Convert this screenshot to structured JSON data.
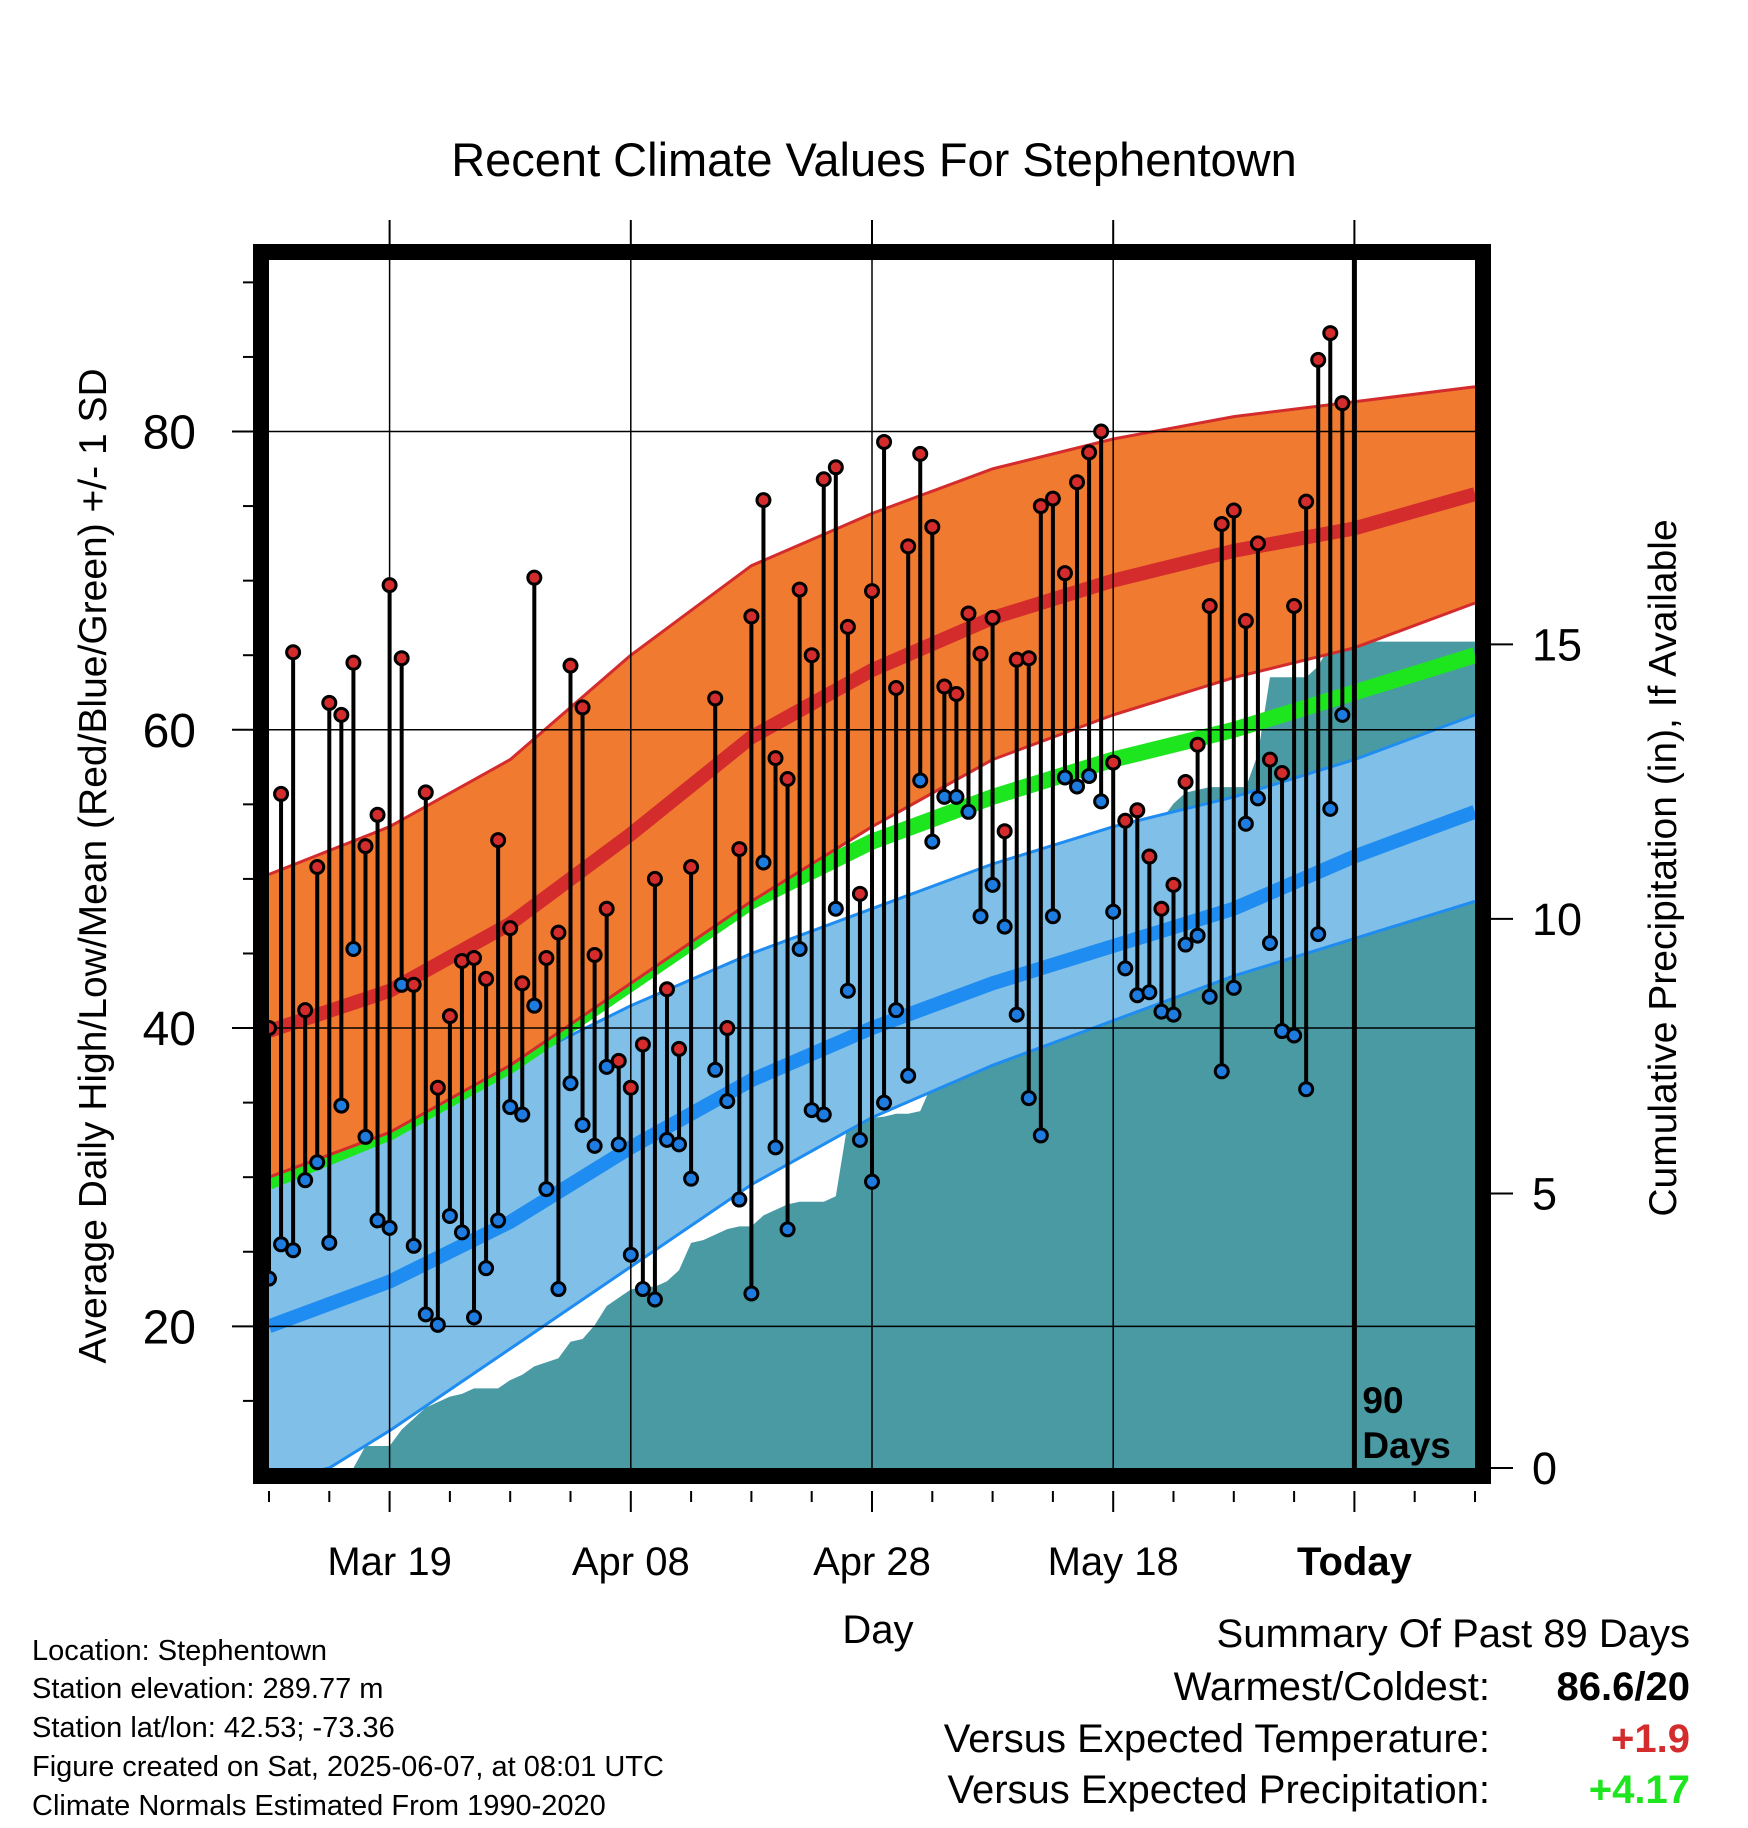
{
  "chart_data": {
    "type": "line",
    "title": "Recent Climate Values For Stephentown",
    "xlabel": "Day",
    "ylabel": "Average Daily High/Low/Mean (Red/Blue/Green) +/- 1 SD",
    "y2label": "Cumulative Precipitation (in), If Available",
    "ylim": [
      10.5,
      91.5
    ],
    "y2lim": [
      0,
      22
    ],
    "yticks": [
      "20",
      "40",
      "60",
      "80"
    ],
    "y2ticks": [
      "0",
      "5",
      "10",
      "15"
    ],
    "xticks": [
      {
        "day": 10,
        "label": "Mar 19"
      },
      {
        "day": 30,
        "label": "Apr 08"
      },
      {
        "day": 50,
        "label": "Apr 28"
      },
      {
        "day": 70,
        "label": "May 18"
      },
      {
        "day": 90,
        "label": "Today"
      }
    ],
    "today_label": [
      "90",
      "Days"
    ],
    "days": 100,
    "today_day": 90,
    "normals": {
      "high_mean": [
        [
          0,
          39.8
        ],
        [
          10,
          42.5
        ],
        [
          20,
          47
        ],
        [
          30,
          53
        ],
        [
          40,
          59.5
        ],
        [
          50,
          64
        ],
        [
          60,
          67.5
        ],
        [
          70,
          70
        ],
        [
          80,
          72
        ],
        [
          90,
          73.5
        ],
        [
          100,
          75.8
        ]
      ],
      "high_upper": [
        [
          0,
          50.3
        ],
        [
          10,
          53.5
        ],
        [
          20,
          58
        ],
        [
          30,
          65
        ],
        [
          40,
          71
        ],
        [
          50,
          74.5
        ],
        [
          60,
          77.5
        ],
        [
          70,
          79.5
        ],
        [
          80,
          81
        ],
        [
          90,
          82
        ],
        [
          100,
          83
        ]
      ],
      "high_lower": [
        [
          0,
          30
        ],
        [
          10,
          33
        ],
        [
          20,
          37.5
        ],
        [
          30,
          43
        ],
        [
          40,
          48.5
        ],
        [
          50,
          53.5
        ],
        [
          60,
          58
        ],
        [
          70,
          61
        ],
        [
          80,
          63.5
        ],
        [
          90,
          65.5
        ],
        [
          100,
          68.5
        ]
      ],
      "mean": [
        [
          0,
          29.7
        ],
        [
          10,
          33
        ],
        [
          20,
          37.5
        ],
        [
          30,
          43
        ],
        [
          40,
          48.5
        ],
        [
          50,
          52.5
        ],
        [
          60,
          55.5
        ],
        [
          70,
          58
        ],
        [
          80,
          60
        ],
        [
          90,
          62.5
        ],
        [
          100,
          65
        ]
      ],
      "low_mean": [
        [
          0,
          20
        ],
        [
          10,
          23
        ],
        [
          20,
          27
        ],
        [
          30,
          32
        ],
        [
          40,
          36.5
        ],
        [
          50,
          40
        ],
        [
          60,
          43
        ],
        [
          70,
          45.5
        ],
        [
          80,
          48
        ],
        [
          90,
          51.5
        ],
        [
          100,
          54.5
        ]
      ],
      "low_upper": [
        [
          0,
          30.5
        ],
        [
          10,
          33.5
        ],
        [
          20,
          37.5
        ],
        [
          30,
          41.5
        ],
        [
          40,
          45
        ],
        [
          50,
          48
        ],
        [
          60,
          51
        ],
        [
          70,
          53.5
        ],
        [
          80,
          55.5
        ],
        [
          90,
          58
        ],
        [
          100,
          61
        ]
      ],
      "low_lower": [
        [
          0,
          9.5
        ],
        [
          5,
          10.5
        ],
        [
          10,
          13
        ],
        [
          20,
          18.5
        ],
        [
          30,
          24
        ],
        [
          40,
          29.5
        ],
        [
          50,
          34
        ],
        [
          60,
          37.5
        ],
        [
          70,
          40.5
        ],
        [
          80,
          43.5
        ],
        [
          90,
          46
        ],
        [
          100,
          48.5
        ]
      ]
    },
    "daily": [
      {
        "day": 0,
        "high": 40.0,
        "low": 23.2
      },
      {
        "day": 1,
        "high": 55.7,
        "low": 25.5
      },
      {
        "day": 2,
        "high": 65.2,
        "low": 25.1
      },
      {
        "day": 3,
        "high": 41.2,
        "low": 29.8
      },
      {
        "day": 4,
        "high": 50.8,
        "low": 31.0
      },
      {
        "day": 5,
        "high": 61.8,
        "low": 25.6
      },
      {
        "day": 6,
        "high": 61.0,
        "low": 34.8
      },
      {
        "day": 7,
        "high": 64.5,
        "low": 45.3
      },
      {
        "day": 8,
        "high": 52.2,
        "low": 32.7
      },
      {
        "day": 9,
        "high": 54.3,
        "low": 27.1
      },
      {
        "day": 10,
        "high": 69.7,
        "low": 26.6
      },
      {
        "day": 11,
        "high": 64.8,
        "low": 42.9
      },
      {
        "day": 12,
        "high": 42.9,
        "low": 25.4
      },
      {
        "day": 13,
        "high": 55.8,
        "low": 20.8
      },
      {
        "day": 14,
        "high": 36.0,
        "low": 20.1
      },
      {
        "day": 15,
        "high": 40.8,
        "low": 27.4
      },
      {
        "day": 16,
        "high": 44.5,
        "low": 26.3
      },
      {
        "day": 17,
        "high": 44.7,
        "low": 20.6
      },
      {
        "day": 18,
        "high": 43.3,
        "low": 23.9
      },
      {
        "day": 19,
        "high": 52.6,
        "low": 27.1
      },
      {
        "day": 20,
        "high": 46.7,
        "low": 34.7
      },
      {
        "day": 21,
        "high": 43.0,
        "low": 34.2
      },
      {
        "day": 22,
        "high": 70.2,
        "low": 41.5
      },
      {
        "day": 23,
        "high": 44.7,
        "low": 29.2
      },
      {
        "day": 24,
        "high": 46.4,
        "low": 22.5
      },
      {
        "day": 25,
        "high": 64.3,
        "low": 36.3
      },
      {
        "day": 26,
        "high": 61.5,
        "low": 33.5
      },
      {
        "day": 27,
        "high": 44.9,
        "low": 32.1
      },
      {
        "day": 28,
        "high": 48.0,
        "low": 37.4
      },
      {
        "day": 29,
        "high": 37.8,
        "low": 32.2
      },
      {
        "day": 30,
        "high": 36.0,
        "low": 24.8
      },
      {
        "day": 31,
        "high": 38.9,
        "low": 22.5
      },
      {
        "day": 32,
        "high": 50.0,
        "low": 21.8
      },
      {
        "day": 33,
        "high": 42.6,
        "low": 32.5
      },
      {
        "day": 34,
        "high": 38.6,
        "low": 32.2
      },
      {
        "day": 35,
        "high": 50.8,
        "low": 29.9
      },
      {
        "day": 37,
        "high": 62.1,
        "low": 37.2
      },
      {
        "day": 38,
        "high": 40.0,
        "low": 35.1
      },
      {
        "day": 39,
        "high": 52.0,
        "low": 28.5
      },
      {
        "day": 40,
        "high": 67.6,
        "low": 22.2
      },
      {
        "day": 41,
        "high": 75.4,
        "low": 51.1
      },
      {
        "day": 42,
        "high": 58.1,
        "low": 32.0
      },
      {
        "day": 43,
        "high": 56.7,
        "low": 26.5
      },
      {
        "day": 44,
        "high": 69.4,
        "low": 45.3
      },
      {
        "day": 45,
        "high": 65.0,
        "low": 34.5
      },
      {
        "day": 46,
        "high": 76.8,
        "low": 34.2
      },
      {
        "day": 47,
        "high": 77.6,
        "low": 48.0
      },
      {
        "day": 48,
        "high": 66.9,
        "low": 42.5
      },
      {
        "day": 49,
        "high": 49.0,
        "low": 32.5
      },
      {
        "day": 50,
        "high": 69.3,
        "low": 29.7
      },
      {
        "day": 51,
        "high": 79.3,
        "low": 35.0
      },
      {
        "day": 52,
        "high": 62.8,
        "low": 41.2
      },
      {
        "day": 53,
        "high": 72.3,
        "low": 36.8
      },
      {
        "day": 54,
        "high": 78.5,
        "low": 56.6
      },
      {
        "day": 55,
        "high": 73.6,
        "low": 52.5
      },
      {
        "day": 56,
        "high": 62.9,
        "low": 55.5
      },
      {
        "day": 57,
        "high": 62.4,
        "low": 55.5
      },
      {
        "day": 58,
        "high": 67.8,
        "low": 54.5
      },
      {
        "day": 59,
        "high": 65.1,
        "low": 47.5
      },
      {
        "day": 60,
        "high": 67.5,
        "low": 49.6
      },
      {
        "day": 61,
        "high": 53.2,
        "low": 46.8
      },
      {
        "day": 62,
        "high": 64.7,
        "low": 40.9
      },
      {
        "day": 63,
        "high": 64.8,
        "low": 35.3
      },
      {
        "day": 64,
        "high": 75.0,
        "low": 32.8
      },
      {
        "day": 65,
        "high": 75.5,
        "low": 47.5
      },
      {
        "day": 66,
        "high": 70.5,
        "low": 56.8
      },
      {
        "day": 67,
        "high": 76.6,
        "low": 56.2
      },
      {
        "day": 68,
        "high": 78.6,
        "low": 56.9
      },
      {
        "day": 69,
        "high": 80.0,
        "low": 55.2
      },
      {
        "day": 70,
        "high": 57.8,
        "low": 47.8
      },
      {
        "day": 71,
        "high": 53.9,
        "low": 44.0
      },
      {
        "day": 72,
        "high": 54.6,
        "low": 42.2
      },
      {
        "day": 73,
        "high": 51.5,
        "low": 42.4
      },
      {
        "day": 74,
        "high": 48.0,
        "low": 41.1
      },
      {
        "day": 75,
        "high": 49.6,
        "low": 40.9
      },
      {
        "day": 76,
        "high": 56.5,
        "low": 45.6
      },
      {
        "day": 77,
        "high": 59.0,
        "low": 46.2
      },
      {
        "day": 78,
        "high": 68.3,
        "low": 42.1
      },
      {
        "day": 79,
        "high": 73.8,
        "low": 37.1
      },
      {
        "day": 80,
        "high": 74.7,
        "low": 42.7
      },
      {
        "day": 81,
        "high": 67.3,
        "low": 53.7
      },
      {
        "day": 82,
        "high": 72.5,
        "low": 55.4
      },
      {
        "day": 83,
        "high": 58.0,
        "low": 45.7
      },
      {
        "day": 84,
        "high": 57.1,
        "low": 39.8
      },
      {
        "day": 85,
        "high": 68.3,
        "low": 39.5
      },
      {
        "day": 86,
        "high": 75.3,
        "low": 35.9
      },
      {
        "day": 87,
        "high": 84.8,
        "low": 46.3
      },
      {
        "day": 88,
        "high": 86.6,
        "low": 54.7
      },
      {
        "day": 89,
        "high": 81.9,
        "low": 61.0
      }
    ],
    "precip": [
      [
        0,
        0
      ],
      [
        7,
        0
      ],
      [
        8,
        0.4
      ],
      [
        10,
        0.4
      ],
      [
        11,
        0.7
      ],
      [
        12,
        0.9
      ],
      [
        13,
        1.1
      ],
      [
        14,
        1.2
      ],
      [
        15,
        1.3
      ],
      [
        16,
        1.35
      ],
      [
        17,
        1.45
      ],
      [
        18,
        1.45
      ],
      [
        19,
        1.45
      ],
      [
        20,
        1.6
      ],
      [
        21,
        1.7
      ],
      [
        22,
        1.85
      ],
      [
        24,
        2.0
      ],
      [
        25,
        2.3
      ],
      [
        26,
        2.35
      ],
      [
        27,
        2.6
      ],
      [
        28,
        2.95
      ],
      [
        29,
        3.1
      ],
      [
        30,
        3.25
      ],
      [
        31,
        3.3
      ],
      [
        32,
        3.3
      ],
      [
        33,
        3.4
      ],
      [
        34,
        3.6
      ],
      [
        35,
        4.1
      ],
      [
        36,
        4.15
      ],
      [
        37,
        4.25
      ],
      [
        38,
        4.35
      ],
      [
        39,
        4.4
      ],
      [
        40,
        4.4
      ],
      [
        41,
        4.6
      ],
      [
        42,
        4.7
      ],
      [
        43,
        4.8
      ],
      [
        44,
        4.85
      ],
      [
        45,
        4.85
      ],
      [
        46,
        4.85
      ],
      [
        47,
        4.95
      ],
      [
        48,
        6.3
      ],
      [
        49,
        6.35
      ],
      [
        51,
        6.4
      ],
      [
        52,
        6.45
      ],
      [
        53,
        6.45
      ],
      [
        54,
        6.5
      ],
      [
        55,
        7.0
      ],
      [
        56,
        7.7
      ],
      [
        57,
        8.4
      ],
      [
        58,
        8.9
      ],
      [
        59,
        9.4
      ],
      [
        60,
        9.45
      ],
      [
        61,
        10.3
      ],
      [
        62,
        11.0
      ],
      [
        63,
        11.05
      ],
      [
        64,
        11.05
      ],
      [
        65,
        11.1
      ],
      [
        66,
        11.15
      ],
      [
        68,
        11.25
      ],
      [
        70,
        11.3
      ],
      [
        72,
        11.35
      ],
      [
        73,
        11.5
      ],
      [
        74,
        11.8
      ],
      [
        75,
        12.1
      ],
      [
        76,
        12.3
      ],
      [
        78,
        12.4
      ],
      [
        81,
        12.4
      ],
      [
        82,
        13.0
      ],
      [
        83,
        14.4
      ],
      [
        84,
        14.4
      ],
      [
        86,
        14.4
      ],
      [
        87,
        14.6
      ],
      [
        88,
        15.0
      ],
      [
        89,
        15.05
      ],
      [
        100,
        15.05
      ]
    ]
  },
  "info": {
    "location": "Location: Stephentown",
    "elevation": "Station elevation: 289.77 m",
    "latlon": "Station lat/lon: 42.53; -73.36",
    "created": "Figure created on Sat, 2025-06-07, at 08:01 UTC",
    "normals": "Climate Normals Estimated From 1990-2020"
  },
  "summary": {
    "title": "Summary Of Past 89 Days",
    "warmest_coldest_label": "Warmest/Coldest:",
    "warmest_coldest_value": "86.6/20",
    "temp_label": "Versus Expected Temperature:",
    "temp_value": "+1.9",
    "precip_label": "Versus Expected Precipitation:",
    "precip_value": "+4.17"
  },
  "colors": {
    "high_band": "#f07a30",
    "high_line": "#d42c2c",
    "mean_line": "#1ee61e",
    "low_band": "#80c0e8",
    "low_line": "#1e8cf0",
    "precip": "#4a9aa4",
    "high_dot": "#d42c2c",
    "low_dot": "#1e7be0",
    "temp_value": "#d42c2c",
    "precip_value": "#1ee61e"
  }
}
